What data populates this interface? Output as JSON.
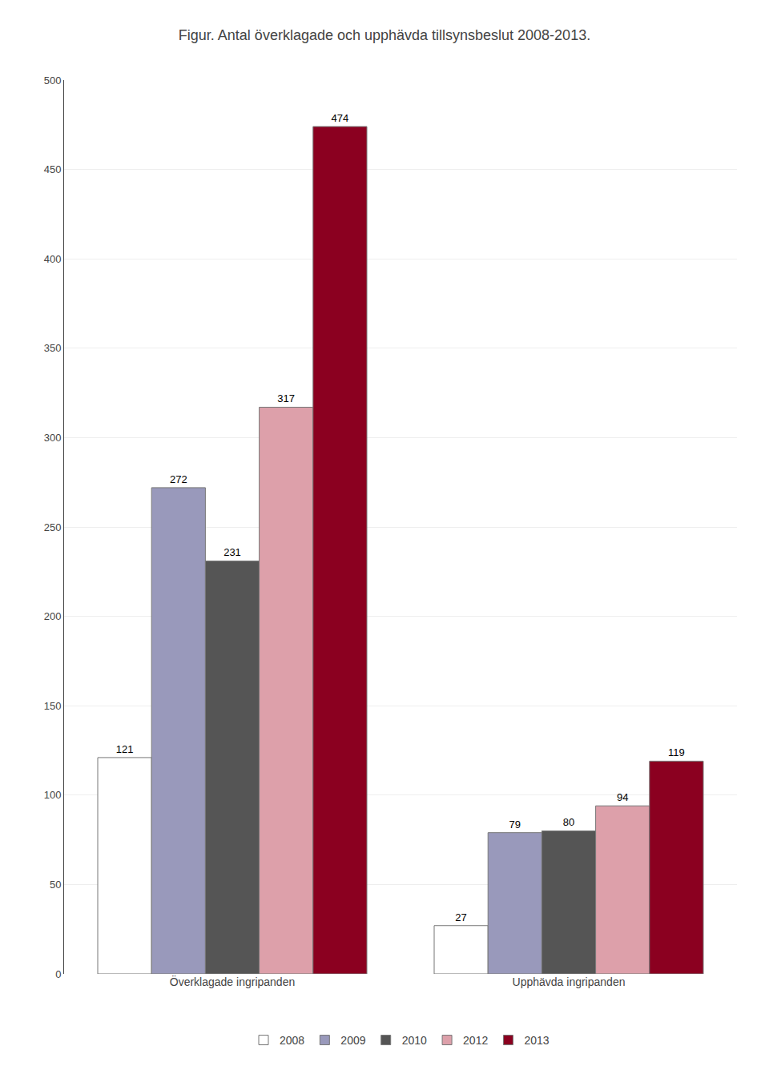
{
  "chart_data": {
    "type": "bar",
    "title": "Figur. Antal överklagade och upphävda tillsynsbeslut 2008-2013.",
    "categories": [
      "Överklagade ingripanden",
      "Upphävda ingripanden"
    ],
    "series": [
      {
        "name": "2008",
        "color": "#ffffff",
        "values": [
          121,
          27
        ]
      },
      {
        "name": "2009",
        "color": "#9999bb",
        "values": [
          272,
          79
        ]
      },
      {
        "name": "2010",
        "color": "#555555",
        "values": [
          231,
          80
        ]
      },
      {
        "name": "2012",
        "color": "#dda0aa",
        "values": [
          317,
          94
        ]
      },
      {
        "name": "2013",
        "color": "#8b0020",
        "values": [
          474,
          119
        ]
      }
    ],
    "ylim": [
      0,
      500
    ],
    "yticks": [
      0,
      50,
      100,
      150,
      200,
      250,
      300,
      350,
      400,
      450,
      500
    ],
    "grid": true,
    "data_labels": true,
    "legend": "bottom"
  }
}
